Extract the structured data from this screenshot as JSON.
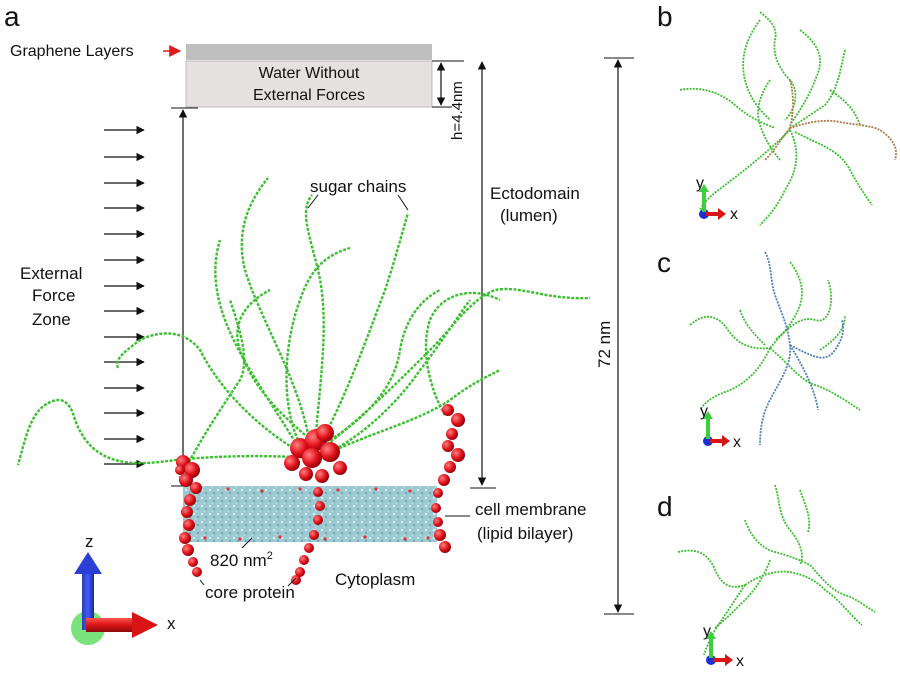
{
  "panels": {
    "a": "a",
    "b": "b",
    "c": "c",
    "d": "d"
  },
  "labels": {
    "graphene": "Graphene Layers",
    "water_line1": "Water Without",
    "water_line2": "External Forces",
    "h": "h=4.4nm",
    "sugar": "sugar chains",
    "ecto_line1": "Ectodomain",
    "ecto_line2": "(lumen)",
    "force_line1": "External",
    "force_line2": "Force",
    "force_line3": "Zone",
    "height": "72 nm",
    "membrane_line1": "cell membrane",
    "membrane_line2": "(lipid bilayer)",
    "area": "820 nm",
    "area_sup": "2",
    "core": "core protein",
    "cytoplasm": "Cytoplasm"
  },
  "axes": {
    "a": {
      "z": "z",
      "x": "x"
    },
    "b": {
      "y": "y",
      "x": "x"
    },
    "c": {
      "y": "y",
      "x": "x"
    },
    "d": {
      "y": "y",
      "x": "x"
    }
  },
  "colors": {
    "sugar": "#3bbf2f",
    "protein": "#e0101a",
    "membrane": "#8fc9d3",
    "water": "#e6e1e1",
    "arrow_red": "#e01b1b",
    "axis_blue": "#1f3fd6",
    "axis_green": "#3ccf3c",
    "chain_b_highlight": "#b07a4a",
    "chain_c_highlight": "#4a7fb8"
  }
}
